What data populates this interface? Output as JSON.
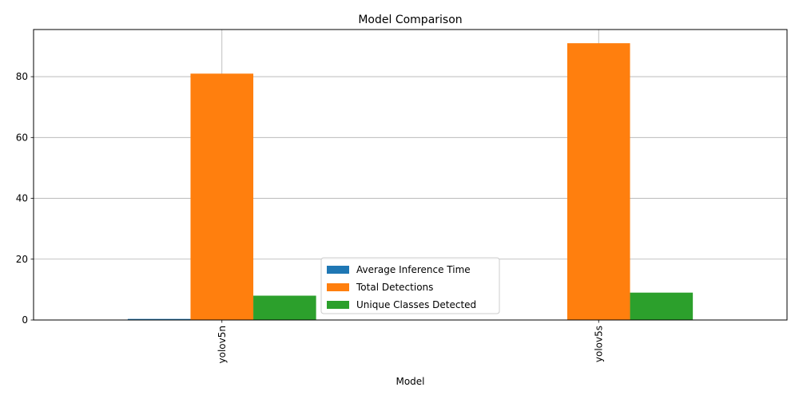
{
  "chart_data": {
    "type": "bar",
    "title": "Model Comparison",
    "xlabel": "Model",
    "ylabel": "",
    "categories": [
      "yolov5n",
      "yolov5s"
    ],
    "series": [
      {
        "name": "Average Inference Time",
        "values": [
          0.35,
          0.1
        ],
        "color": "#1f77b4"
      },
      {
        "name": "Total Detections",
        "values": [
          81,
          91
        ],
        "color": "#ff7f0e"
      },
      {
        "name": "Unique Classes Detected",
        "values": [
          8,
          9
        ],
        "color": "#2ca02c"
      }
    ],
    "ylim": [
      0,
      95.5
    ],
    "yticks": [
      "0",
      "20",
      "40",
      "60",
      "80"
    ],
    "grid": true,
    "legend_position": "lower center"
  }
}
